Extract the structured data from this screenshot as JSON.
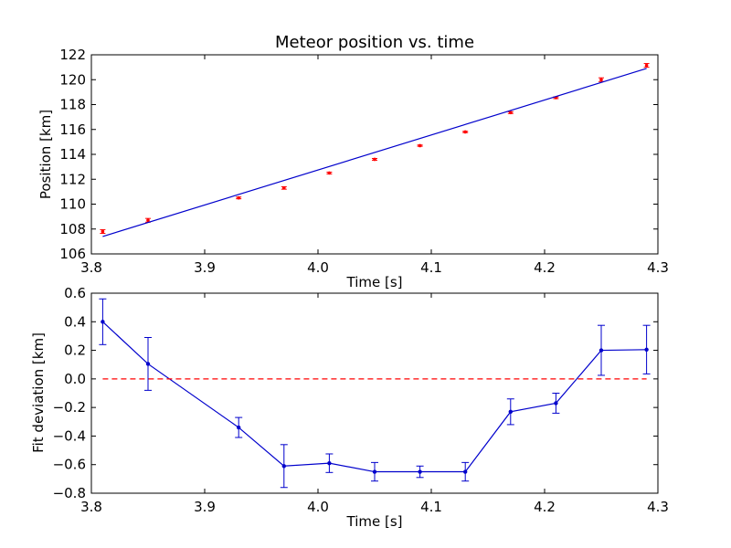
{
  "chart_data": [
    {
      "type": "scatter",
      "title": "Meteor position vs. time",
      "xlabel": "Time [s]",
      "ylabel": "Position [km]",
      "xlim": [
        3.8,
        4.3
      ],
      "ylim": [
        106,
        122
      ],
      "xticks": [
        "3.8",
        "3.9",
        "4.0",
        "4.1",
        "4.2",
        "4.3"
      ],
      "yticks": [
        "106",
        "108",
        "110",
        "112",
        "114",
        "116",
        "118",
        "120",
        "122"
      ],
      "grid": false,
      "series": [
        {
          "kind": "points-with-errorbars",
          "color": "#ff0000",
          "x": [
            3.81,
            3.85,
            3.93,
            3.97,
            4.01,
            4.05,
            4.09,
            4.13,
            4.17,
            4.21,
            4.25,
            4.29
          ],
          "y": [
            107.8,
            108.7,
            110.5,
            111.3,
            112.5,
            113.6,
            114.7,
            115.8,
            117.35,
            118.55,
            120.0,
            121.15
          ],
          "err": [
            0.15,
            0.15,
            0.07,
            0.1,
            0.07,
            0.07,
            0.05,
            0.05,
            0.07,
            0.07,
            0.15,
            0.15
          ]
        },
        {
          "kind": "fit-line",
          "color": "#0000cc",
          "x": [
            3.81,
            4.29
          ],
          "y": [
            107.4,
            120.9
          ]
        }
      ]
    },
    {
      "type": "line",
      "title": "",
      "xlabel": "Time [s]",
      "ylabel": "Fit deviation [km]",
      "xlim": [
        3.8,
        4.3
      ],
      "ylim": [
        -0.8,
        0.6
      ],
      "xticks": [
        "3.8",
        "3.9",
        "4.0",
        "4.1",
        "4.2",
        "4.3"
      ],
      "yticks": [
        "−0.8",
        "−0.6",
        "−0.4",
        "−0.2",
        "0.0",
        "0.2",
        "0.4",
        "0.6"
      ],
      "grid": false,
      "series": [
        {
          "kind": "line-with-errorbars",
          "color": "#0000cc",
          "x": [
            3.81,
            3.85,
            3.93,
            3.97,
            4.01,
            4.05,
            4.09,
            4.13,
            4.17,
            4.21,
            4.25,
            4.29
          ],
          "y": [
            0.4,
            0.105,
            -0.34,
            -0.61,
            -0.59,
            -0.65,
            -0.65,
            -0.65,
            -0.23,
            -0.17,
            0.2,
            0.205
          ],
          "err": [
            0.16,
            0.185,
            0.07,
            0.15,
            0.065,
            0.065,
            0.04,
            0.065,
            0.09,
            0.07,
            0.175,
            0.17
          ]
        },
        {
          "kind": "reference-line",
          "color": "#ff0000",
          "style": "dashed",
          "y": 0.0,
          "x": [
            3.81,
            4.29
          ]
        }
      ]
    }
  ]
}
